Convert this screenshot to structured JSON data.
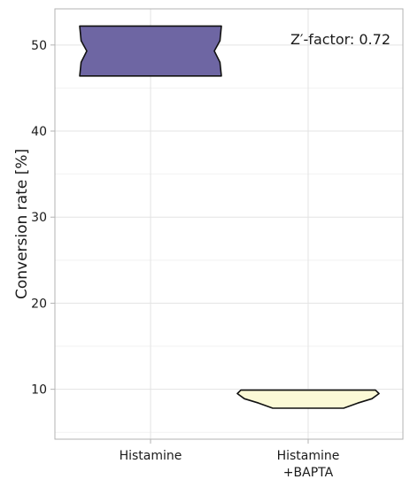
{
  "chart_data": {
    "type": "violin",
    "ylabel": "Conversion rate [%]",
    "ylim": [
      4.2,
      54.2
    ],
    "yticks": [
      10,
      20,
      30,
      40,
      50
    ],
    "grid": true,
    "annotation": "Z′-factor: 0.72",
    "categories": [
      {
        "lines": [
          "Histamine"
        ]
      },
      {
        "lines": [
          "Histamine",
          "+BAPTA"
        ]
      }
    ],
    "violins": [
      {
        "category_index": 0,
        "fill": "#6e66a3",
        "y_min": 46.4,
        "y_max": 52.2,
        "profile": [
          [
            46.4,
            1.0
          ],
          [
            48.0,
            0.98
          ],
          [
            49.3,
            0.9
          ],
          [
            50.5,
            0.98
          ],
          [
            52.2,
            1.0
          ]
        ]
      },
      {
        "category_index": 1,
        "fill": "#fbf9d6",
        "y_min": 7.8,
        "y_max": 9.9,
        "profile": [
          [
            7.8,
            0.5
          ],
          [
            8.4,
            0.7
          ],
          [
            8.9,
            0.9
          ],
          [
            9.5,
            1.0
          ],
          [
            9.9,
            0.95
          ]
        ]
      }
    ]
  }
}
